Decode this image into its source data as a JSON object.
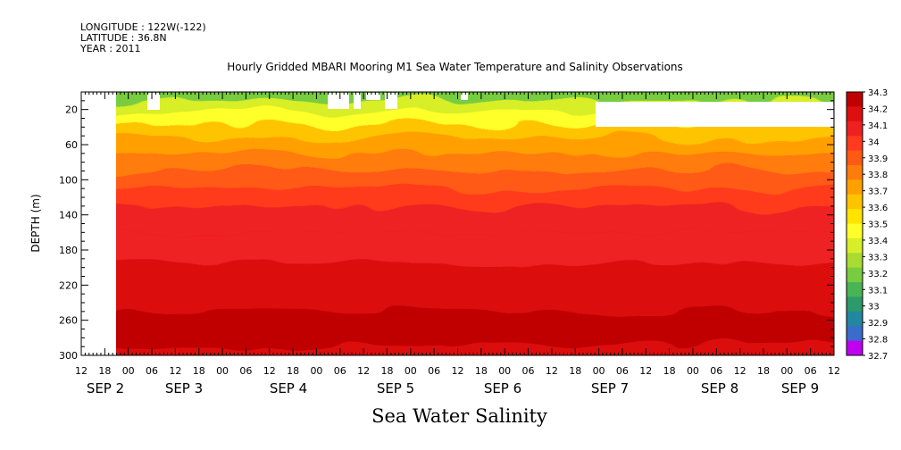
{
  "header": {
    "longitude": "LONGITUDE : 122W(-122)",
    "latitude": "LATITUDE : 36.8N",
    "year": "YEAR : 2011"
  },
  "chart_data": {
    "type": "heatmap",
    "title": "Hourly Gridded MBARI Mooring M1 Sea Water Temperature and Salinity Observations",
    "xlabel": "Sea Water Salinity",
    "ylabel": "DEPTH (m)",
    "y_inverted": true,
    "ylim": [
      300,
      0
    ],
    "y_ticks": [
      20,
      60,
      100,
      140,
      180,
      220,
      260,
      300
    ],
    "x_hour_ticks": [
      "12",
      "18",
      "00",
      "06",
      "12",
      "18",
      "00",
      "06",
      "12",
      "18",
      "00",
      "06",
      "12",
      "18",
      "00",
      "06",
      "12",
      "18",
      "00",
      "06",
      "12",
      "18",
      "00",
      "06",
      "12",
      "18",
      "00",
      "06",
      "12",
      "18",
      "00",
      "06",
      "12"
    ],
    "x_day_labels": [
      "SEP 2",
      "SEP 3",
      "SEP 4",
      "SEP 5",
      "SEP 6",
      "SEP 7",
      "SEP 8",
      "SEP 9"
    ],
    "colorbar": {
      "min": 32.7,
      "max": 34.3,
      "labels": [
        "34.3",
        "34.2",
        "34.1",
        "34",
        "33.9",
        "33.8",
        "33.7",
        "33.6",
        "33.5",
        "33.4",
        "33.3",
        "33.2",
        "33.1",
        "33",
        "32.9",
        "32.8",
        "32.7"
      ],
      "colors": [
        "#c00000",
        "#dc1010",
        "#ee2020",
        "#ff3a1e",
        "#ff5a14",
        "#ff7c0a",
        "#ffa000",
        "#ffc400",
        "#ffe400",
        "#ffff2a",
        "#d8ee28",
        "#a8dc30",
        "#78cc40",
        "#48b454",
        "#2c9a6a",
        "#2288a0",
        "#3a6ccc"
      ]
    },
    "depth_profile": [
      {
        "depth": 5,
        "salinity": 33.15
      },
      {
        "depth": 15,
        "salinity": 33.3
      },
      {
        "depth": 30,
        "salinity": 33.45
      },
      {
        "depth": 45,
        "salinity": 33.6
      },
      {
        "depth": 60,
        "salinity": 33.7
      },
      {
        "depth": 80,
        "salinity": 33.8
      },
      {
        "depth": 100,
        "salinity": 33.9
      },
      {
        "depth": 120,
        "salinity": 33.97
      },
      {
        "depth": 140,
        "salinity": 34.02
      },
      {
        "depth": 180,
        "salinity": 34.06
      },
      {
        "depth": 210,
        "salinity": 34.12
      },
      {
        "depth": 240,
        "salinity": 34.2
      },
      {
        "depth": 260,
        "salinity": 34.26
      },
      {
        "depth": 280,
        "salinity": 34.22
      },
      {
        "depth": 300,
        "salinity": 34.2
      }
    ],
    "grid": false,
    "legend_position": "right"
  }
}
